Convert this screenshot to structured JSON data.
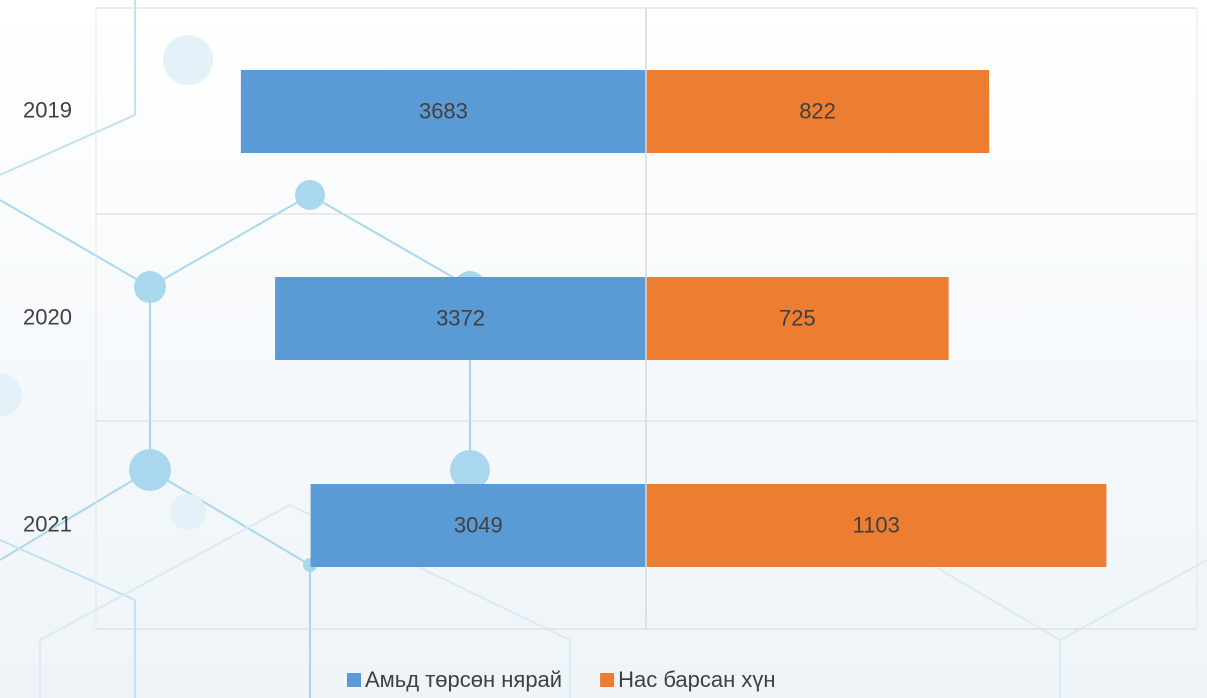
{
  "chart_data": {
    "type": "diverging-bar",
    "categories": [
      "2019",
      "2020",
      "2021"
    ],
    "series": [
      {
        "name": "Амьд төрсөн нярай",
        "color": "#5b9bd5",
        "values": [
          3683,
          3372,
          3049
        ]
      },
      {
        "name": "Нас барсан хүн",
        "color": "#ed7d31",
        "values": [
          822,
          725,
          1103
        ],
        "axis": "x2"
      }
    ],
    "xlim": [
      5000,
      0
    ],
    "x2lim": [
      0,
      1320
    ],
    "legend": "bottom"
  }
}
